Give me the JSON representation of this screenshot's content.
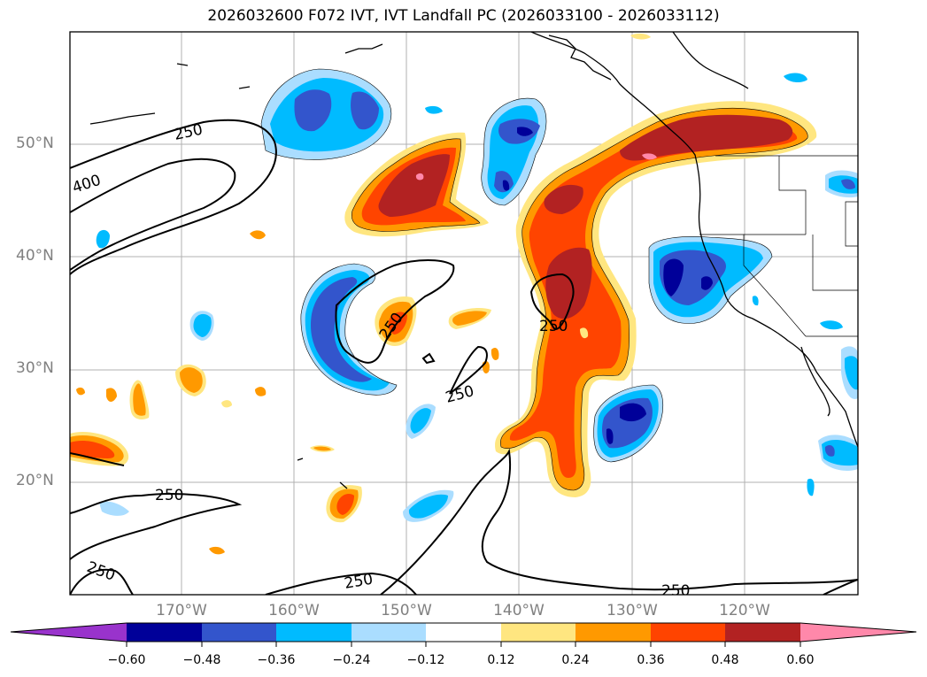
{
  "title": "2026032600 F072 IVT, IVT Landfall PC (2026033100 - 2026033112)",
  "latitude_labels": [
    "50°N",
    "40°N",
    "30°N",
    "20°N"
  ],
  "longitude_labels": [
    "170°W",
    "160°W",
    "150°W",
    "140°W",
    "130°W",
    "120°W"
  ],
  "colorbar": {
    "colors": [
      "#9933cc",
      "#000099",
      "#3355cc",
      "#00bbff",
      "#aaddff",
      "#ffffff",
      "#ffe680",
      "#ff9900",
      "#ff4400",
      "#b22222",
      "#ff88aa"
    ],
    "tick_labels": [
      "−0.60",
      "−0.48",
      "−0.36",
      "−0.24",
      "−0.12",
      "0.12",
      "0.24",
      "0.36",
      "0.48",
      "0.60"
    ]
  },
  "contour_labels": [
    "250",
    "400",
    "250",
    "250",
    "250",
    "250",
    "250",
    "250",
    "250"
  ]
}
